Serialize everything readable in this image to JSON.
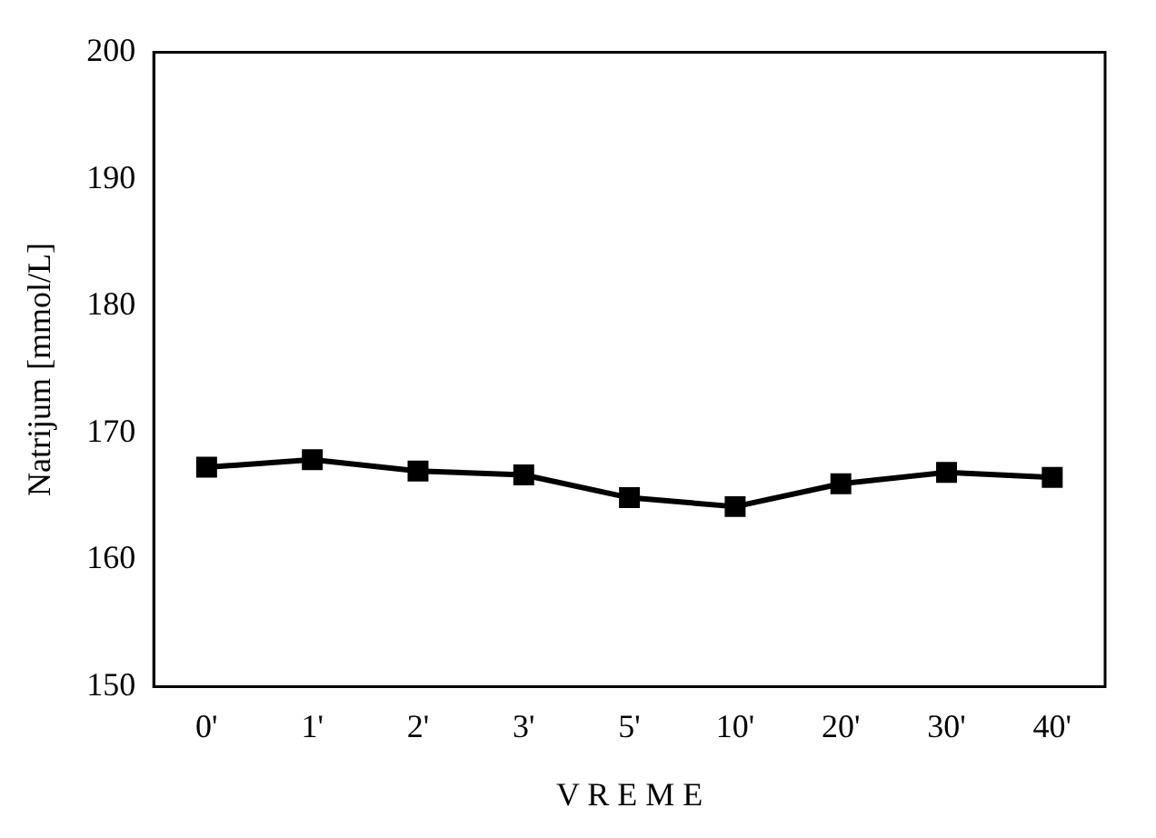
{
  "chart_data": {
    "type": "line",
    "xlabel": "V R E M E",
    "ylabel": "Natrijum [mmol/L]",
    "categories": [
      "0'",
      "1'",
      "2'",
      "3'",
      "5'",
      "10'",
      "20'",
      "30'",
      "40'"
    ],
    "series": [
      {
        "color": "#000000",
        "values": [
          167.3,
          167.9,
          167.0,
          166.7,
          164.9,
          164.2,
          166.0,
          166.9,
          166.5
        ]
      }
    ],
    "ylim": [
      150,
      200
    ],
    "yticks": [
      150,
      160,
      170,
      180,
      190,
      200
    ],
    "grid": false,
    "legend": false,
    "marker": "square",
    "line_style": "solid"
  }
}
